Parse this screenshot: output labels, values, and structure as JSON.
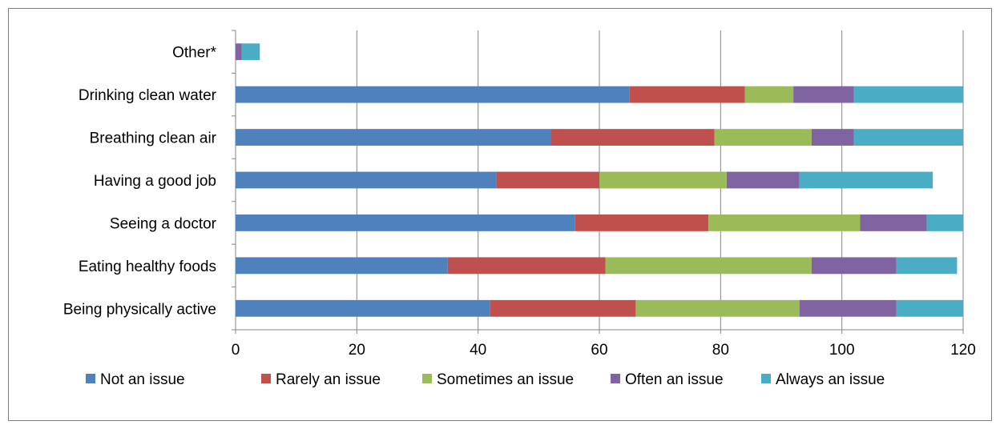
{
  "chart_data": {
    "type": "bar",
    "orientation": "horizontal",
    "stacked": true,
    "categories": [
      "Other*",
      "Drinking clean water",
      "Breathing clean air",
      "Having a good job",
      "Seeing a doctor",
      "Eating healthy foods",
      "Being physically active"
    ],
    "series": [
      {
        "name": "Not an issue",
        "color": "#4F81BD",
        "values": [
          0,
          65,
          52,
          43,
          56,
          35,
          42
        ]
      },
      {
        "name": "Rarely an issue",
        "color": "#C0504D",
        "values": [
          0,
          19,
          27,
          17,
          22,
          26,
          24
        ]
      },
      {
        "name": "Sometimes an issue",
        "color": "#9BBB59",
        "values": [
          0,
          8,
          16,
          21,
          25,
          34,
          27
        ]
      },
      {
        "name": "Often an issue",
        "color": "#8064A2",
        "values": [
          1,
          10,
          7,
          12,
          11,
          14,
          16
        ]
      },
      {
        "name": "Always an issue",
        "color": "#4BACC6",
        "values": [
          3,
          18,
          18,
          22,
          6,
          10,
          11
        ]
      }
    ],
    "xlim": [
      0,
      120
    ],
    "xticks": [
      0,
      20,
      40,
      60,
      80,
      100,
      120
    ],
    "grid": "vertical",
    "legend_position": "bottom",
    "title": "",
    "xlabel": "",
    "ylabel": ""
  }
}
